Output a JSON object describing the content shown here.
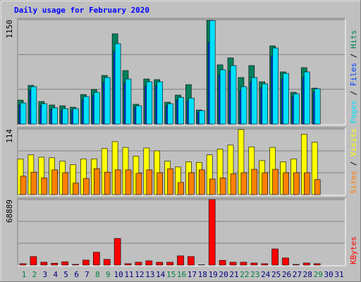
{
  "title": "Daily usage for February 2020",
  "chart_data": [
    {
      "type": "bar",
      "ylim": [
        0,
        1150
      ],
      "yticks": [
        1150
      ],
      "legend_separator": " / ",
      "series": [
        {
          "name": "Hits",
          "color": "#00805C",
          "values": [
            264,
            427,
            249,
            210,
            202,
            186,
            326,
            381,
            536,
            995,
            590,
            218,
            497,
            490,
            241,
            319,
            435,
            155,
            1142,
            653,
            730,
            513,
            645,
            466,
            862,
            575,
            350,
            622,
            396,
            null,
            null
          ]
        },
        {
          "name": "Files",
          "color": "#0040FF",
          "values": [
            210,
            370,
            200,
            160,
            150,
            150,
            270,
            315,
            460,
            800,
            450,
            180,
            420,
            420,
            200,
            265,
            258,
            130,
            900,
            540,
            580,
            370,
            460,
            400,
            750,
            500,
            300,
            515,
            350,
            null,
            null
          ]
        },
        {
          "name": "Pages",
          "color": "#00E0FF",
          "values": [
            233,
            412,
            225,
            179,
            171,
            171,
            303,
            350,
            513,
            886,
            497,
            202,
            466,
            466,
            225,
            295,
            287,
            148,
            1142,
            598,
            645,
            412,
            513,
            443,
            839,
            559,
            334,
            575,
            389,
            null,
            null
          ]
        }
      ]
    },
    {
      "type": "bar",
      "ylim": [
        0,
        114
      ],
      "yticks": [
        114
      ],
      "legend_separator": " / ",
      "series": [
        {
          "name": "Visits",
          "color": "#FFFF00",
          "values": [
            62,
            69,
            65,
            64,
            58,
            52,
            62,
            62,
            80,
            92,
            82,
            67,
            81,
            76,
            58,
            48,
            57,
            56,
            69,
            79,
            86,
            113,
            83,
            59,
            82,
            57,
            62,
            105,
            91,
            null,
            null
          ]
        },
        {
          "name": "Sites",
          "color": "#FF8000",
          "values": [
            32,
            39,
            29,
            43,
            38,
            20,
            28,
            45,
            39,
            43,
            43,
            37,
            43,
            38,
            45,
            21,
            38,
            43,
            27,
            29,
            36,
            38,
            44,
            38,
            44,
            38,
            38,
            38,
            26,
            null,
            null
          ]
        }
      ]
    },
    {
      "type": "bar",
      "ylim": [
        0,
        68889
      ],
      "yticks": [
        68889
      ],
      "series": [
        {
          "name": "KBytes",
          "color": "#FF0000",
          "values": [
            1500,
            8988,
            3000,
            2000,
            3500,
            750,
            5243,
            13500,
            6000,
            28000,
            1500,
            3000,
            4500,
            3000,
            3000,
            9700,
            9000,
            300,
            68889,
            5000,
            3000,
            3000,
            2200,
            1500,
            17000,
            7500,
            700,
            2200,
            1500,
            null,
            null
          ]
        }
      ],
      "categories": [
        "1",
        "2",
        "3",
        "4",
        "5",
        "6",
        "7",
        "8",
        "9",
        "10",
        "11",
        "12",
        "13",
        "14",
        "15",
        "16",
        "17",
        "18",
        "19",
        "20",
        "21",
        "22",
        "23",
        "24",
        "25",
        "26",
        "27",
        "28",
        "29",
        "30",
        "31"
      ],
      "category_colors": [
        "#008040",
        "#008040",
        "#000080",
        "#000080",
        "#000080",
        "#000080",
        "#000080",
        "#008040",
        "#008040",
        "#000080",
        "#000080",
        "#000080",
        "#000080",
        "#000080",
        "#008040",
        "#008040",
        "#000080",
        "#000080",
        "#000080",
        "#000080",
        "#000080",
        "#008040",
        "#008040",
        "#000080",
        "#000080",
        "#000080",
        "#000080",
        "#000080",
        "#008040",
        "#000080",
        "#000080"
      ]
    }
  ]
}
